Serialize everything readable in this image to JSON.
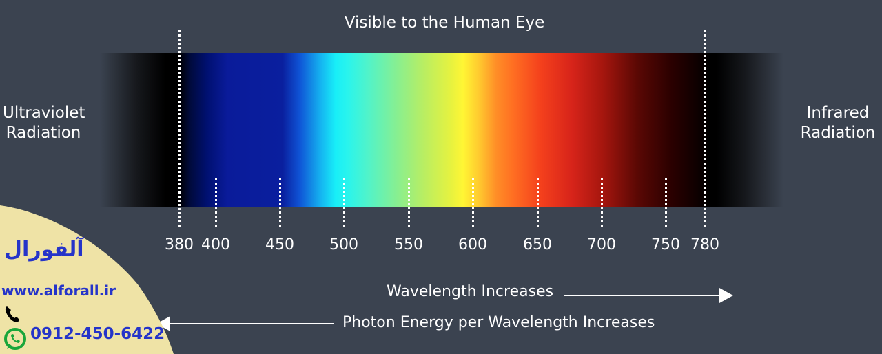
{
  "title": "Visible to the Human Eye",
  "left_label": [
    "Ultraviolet",
    "Radiation"
  ],
  "right_label": [
    "Infrared",
    "Radiation"
  ],
  "ticks": [
    "380",
    "400",
    "450",
    "500",
    "550",
    "600",
    "650",
    "700",
    "750",
    "780"
  ],
  "arrow_top_label": "Wavelength Increases",
  "arrow_bottom_label": "Photon Energy per Wavelength Increases",
  "watermark": {
    "name": "آلفورال",
    "url": "www.alforall.ir",
    "phone": "0912-450-6422"
  },
  "colors": {
    "background": "#3b4350",
    "text": "#ffffff",
    "watermark_bg": "#efe3a6",
    "watermark_text": "#2534c9",
    "whatsapp": "#19a63a"
  }
}
